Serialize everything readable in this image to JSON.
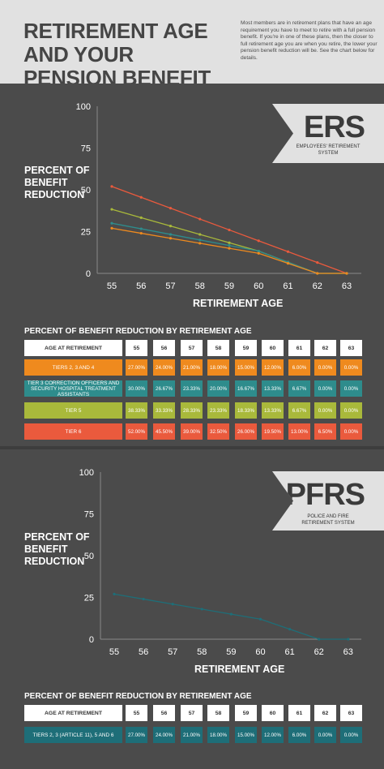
{
  "header": {
    "title": "RETIREMENT AGE AND YOUR PENSION BENEFIT",
    "intro": "Most members are in retirement plans that have an age requirement you have to meet to retire with a full pension benefit. If you're in one of these plans, then the closer to full retirement age you are when you retire, the lower your pension benefit reduction will be. See the chart below for details."
  },
  "chart_data": [
    {
      "type": "line",
      "system_code": "ERS",
      "system_name": "EMPLOYEES' RETIREMENT SYSTEM",
      "ylabel": "PERCENT OF BENEFIT REDUCTION",
      "xlabel": "RETIREMENT AGE",
      "x": [
        55,
        56,
        57,
        58,
        59,
        60,
        61,
        62,
        63
      ],
      "ylim": [
        0,
        100
      ],
      "yticks": [
        0,
        25,
        50,
        75,
        100
      ],
      "series": [
        {
          "name": "TIER 6",
          "color": "#ea5a3d",
          "values": [
            52,
            45.5,
            39,
            32.5,
            26,
            19.5,
            13,
            6.5,
            0
          ]
        },
        {
          "name": "TIER 5",
          "color": "#a9b93b",
          "values": [
            38.33,
            33.33,
            28.33,
            23.33,
            18.33,
            13.33,
            6.67,
            0,
            0
          ]
        },
        {
          "name": "TIER 3 CORRECTION OFFICERS AND SECURITY HOSPITAL TREATMENT ASSISTANTS",
          "color": "#2e8c8c",
          "values": [
            30,
            26.67,
            23.33,
            20,
            16.67,
            13.33,
            6.67,
            0,
            0
          ]
        },
        {
          "name": "TIERS 2, 3 AND 4",
          "color": "#ef8a1e",
          "values": [
            27,
            24,
            21,
            18,
            15,
            12,
            6,
            0,
            0
          ]
        }
      ],
      "table": {
        "title": "PERCENT OF BENEFIT REDUCTION BY RETIREMENT AGE",
        "header_label": "AGE AT RETIREMENT",
        "ages": [
          "55",
          "56",
          "57",
          "58",
          "59",
          "60",
          "61",
          "62",
          "63"
        ],
        "rows": [
          {
            "label": "TIERS 2, 3 AND 4",
            "color": "#ef8a1e",
            "values": [
              "27.00%",
              "24.00%",
              "21.00%",
              "18.00%",
              "15.00%",
              "12.00%",
              "6.00%",
              "0.00%",
              "0.00%"
            ]
          },
          {
            "label": "TIER 3 CORRECTION OFFICERS AND SECURITY HOSPITAL TREATMENT ASSISTANTS",
            "color": "#2e8c8c",
            "values": [
              "30.00%",
              "26.67%",
              "23.33%",
              "20.00%",
              "16.67%",
              "13.33%",
              "6.67%",
              "0.00%",
              "0.00%"
            ]
          },
          {
            "label": "TIER 5",
            "color": "#a9b93b",
            "values": [
              "38.33%",
              "33.33%",
              "28.33%",
              "23.33%",
              "18.33%",
              "13.33%",
              "6.67%",
              "0.00%",
              "0.00%"
            ]
          },
          {
            "label": "TIER 6",
            "color": "#ea5a3d",
            "values": [
              "52.00%",
              "45.50%",
              "39.00%",
              "32.50%",
              "26.00%",
              "19.50%",
              "13.00%",
              "6.50%",
              "0.00%"
            ]
          }
        ]
      }
    },
    {
      "type": "line",
      "system_code": "PFRS",
      "system_name": "POLICE AND FIRE RETIREMENT SYSTEM",
      "ylabel": "PERCENT OF BENEFIT REDUCTION",
      "xlabel": "RETIREMENT AGE",
      "x": [
        55,
        56,
        57,
        58,
        59,
        60,
        61,
        62,
        63
      ],
      "ylim": [
        0,
        100
      ],
      "yticks": [
        0,
        25,
        50,
        75,
        100
      ],
      "series": [
        {
          "name": "TIERS 2, 3 (ARTICLE 11), 5 AND 6",
          "color": "#1e6e78",
          "values": [
            27,
            24,
            21,
            18,
            15,
            12,
            6,
            0,
            0
          ]
        }
      ],
      "table": {
        "title": "PERCENT OF BENEFIT REDUCTION BY RETIREMENT AGE",
        "header_label": "AGE AT RETIREMENT",
        "ages": [
          "55",
          "56",
          "57",
          "58",
          "59",
          "60",
          "61",
          "62",
          "63"
        ],
        "rows": [
          {
            "label": "TIERS 2, 3 (ARTICLE 11), 5 AND 6",
            "color": "#1e6e78",
            "values": [
              "27.00%",
              "24.00%",
              "21.00%",
              "18.00%",
              "15.00%",
              "12.00%",
              "6.00%",
              "0.00%",
              "0.00%"
            ]
          }
        ]
      }
    }
  ]
}
